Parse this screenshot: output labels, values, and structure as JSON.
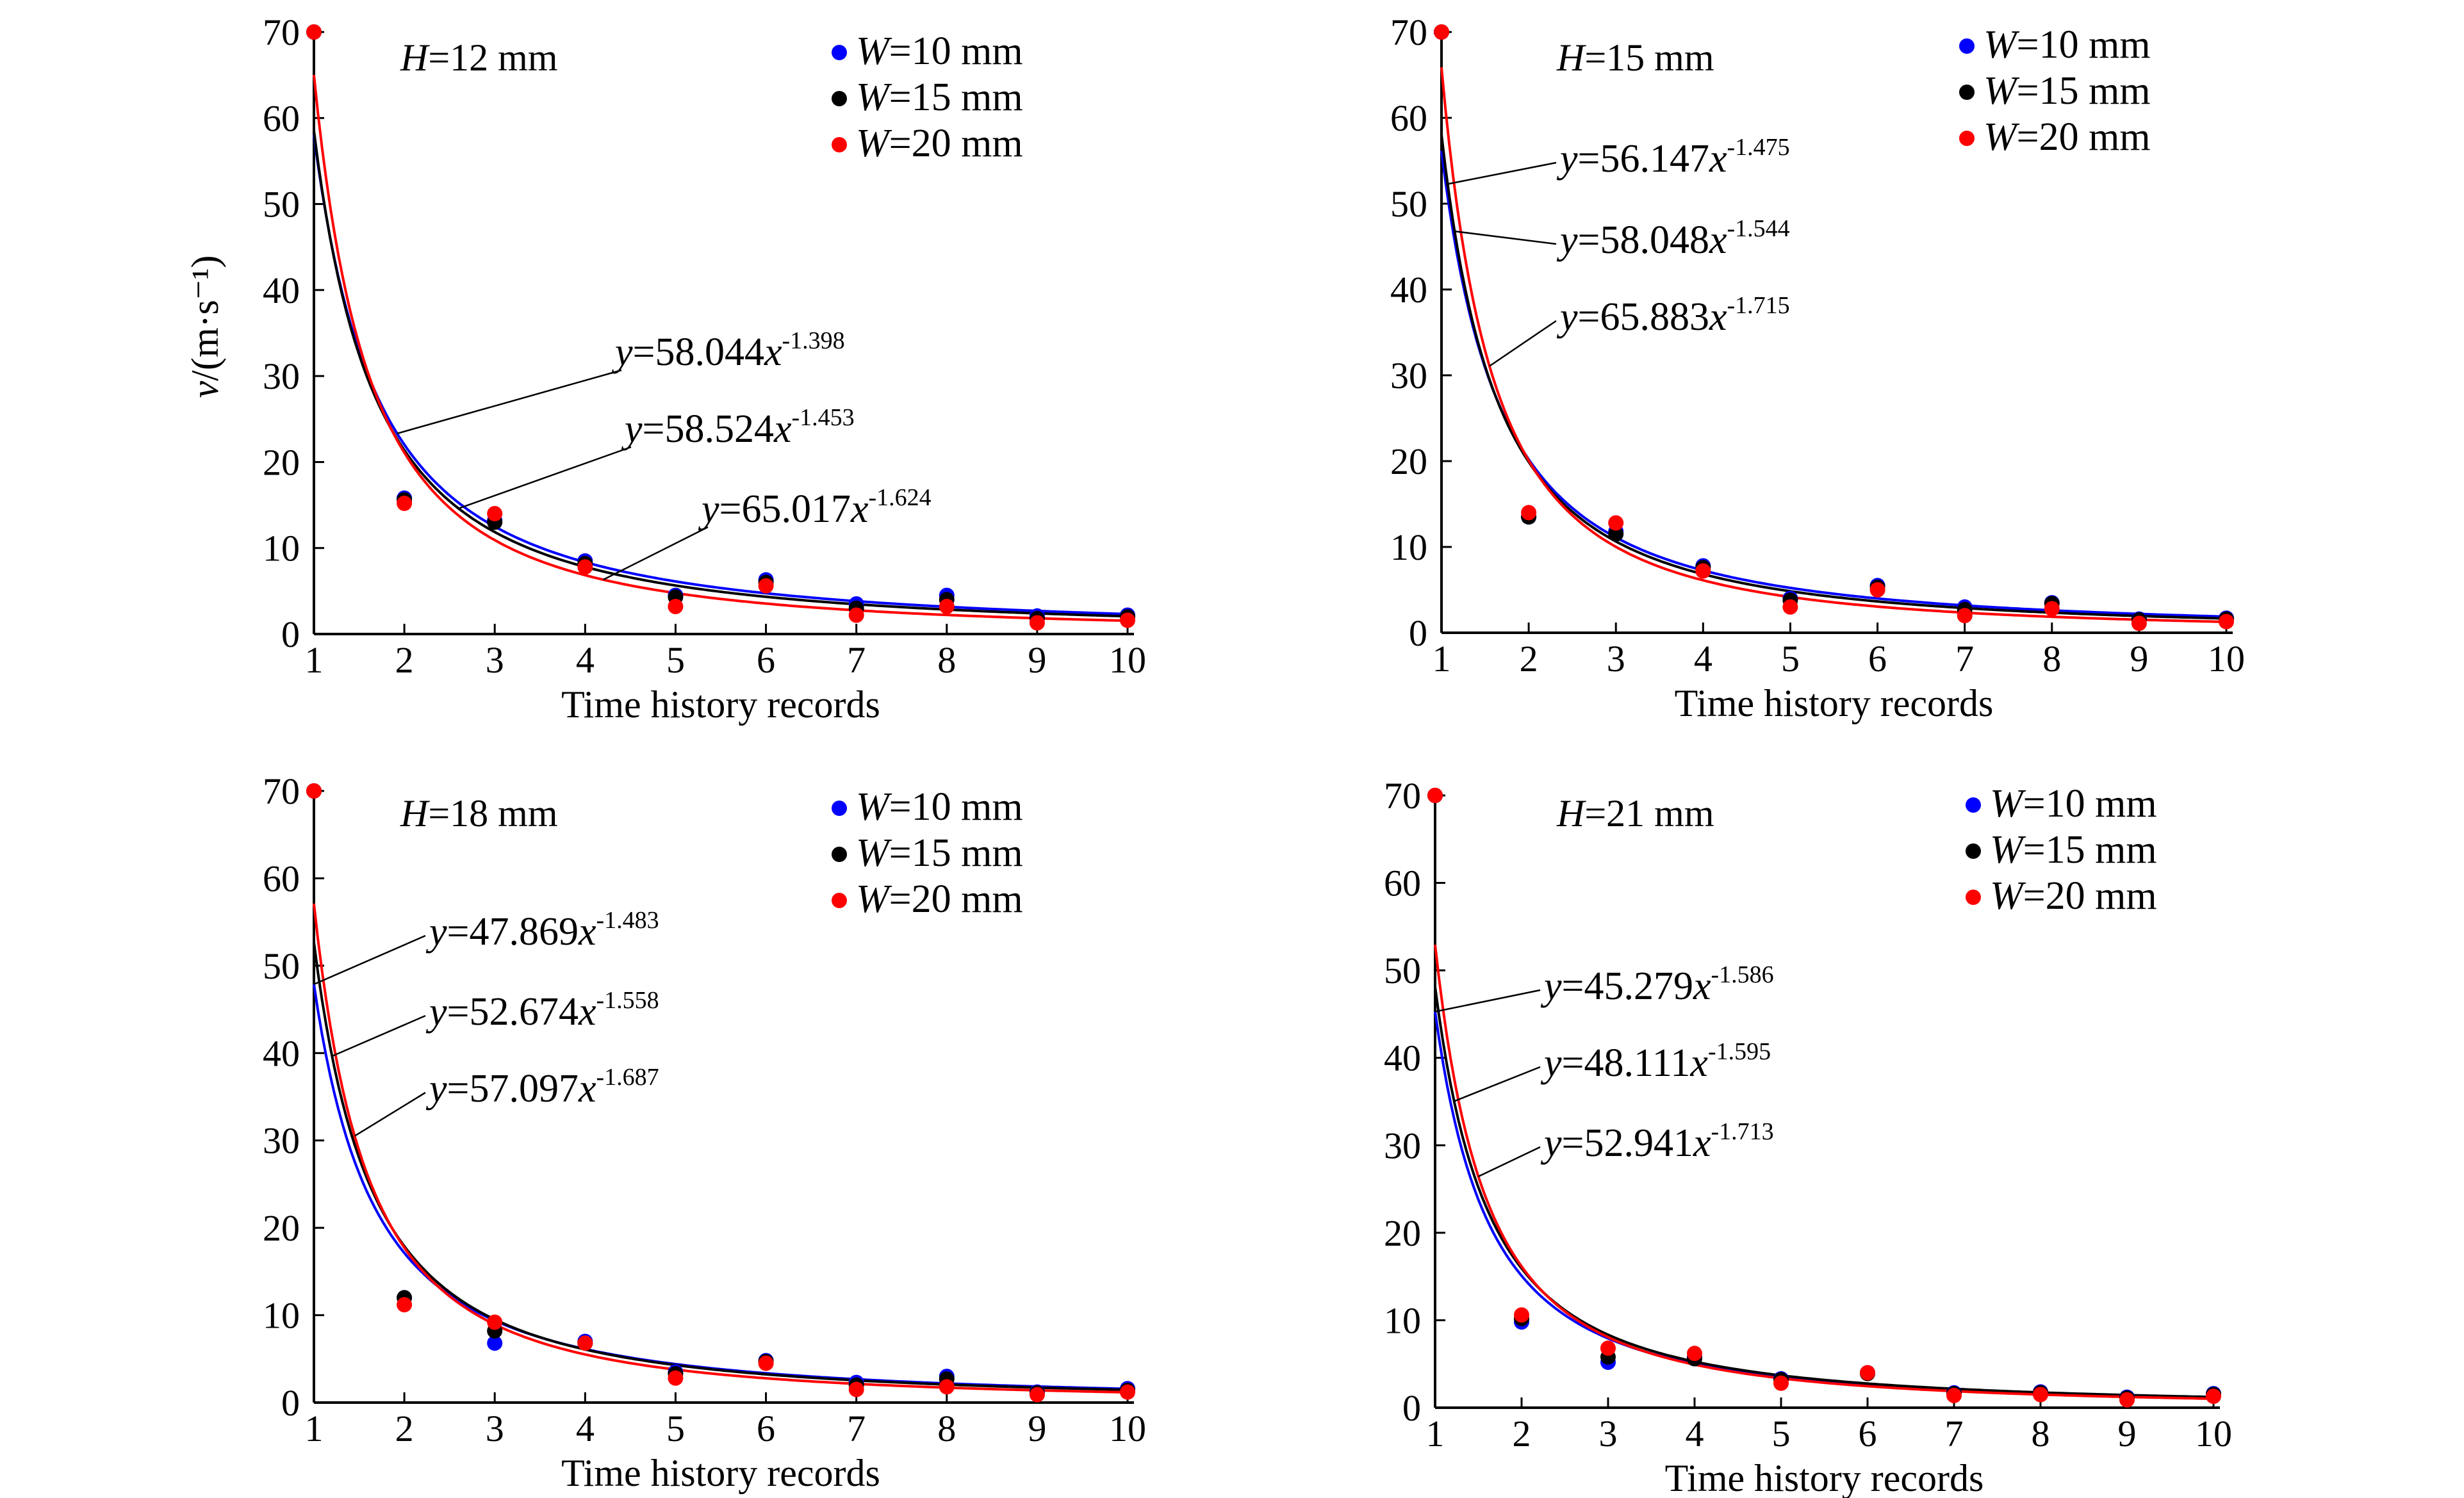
{
  "chart_data": [
    {
      "type": "scatter",
      "title": "H=12 mm",
      "xlabel": "Time history records",
      "ylabel": "v/(m·s⁻¹)",
      "xlim": [
        1,
        10
      ],
      "ylim": [
        0,
        70
      ],
      "xticks": [
        1,
        2,
        3,
        4,
        5,
        6,
        7,
        8,
        9,
        10
      ],
      "yticks": [
        0,
        10,
        20,
        30,
        40,
        50,
        60,
        70
      ],
      "legend_position": "top-right",
      "series": [
        {
          "name": "W=10 mm",
          "color": "#0000ff",
          "x": [
            1,
            2,
            3,
            4,
            5,
            6,
            7,
            8,
            9,
            10
          ],
          "y": [
            70,
            15.8,
            13.2,
            8.5,
            4.5,
            6.3,
            3.5,
            4.5,
            2.1,
            2.2
          ]
        },
        {
          "name": "W=15 mm",
          "color": "#000000",
          "x": [
            1,
            2,
            3,
            4,
            5,
            6,
            7,
            8,
            9,
            10
          ],
          "y": [
            70,
            15.6,
            13.0,
            8.2,
            4.3,
            6.0,
            3.0,
            4.0,
            1.8,
            2.0
          ]
        },
        {
          "name": "W=20 mm",
          "color": "#ff0000",
          "x": [
            1,
            2,
            3,
            4,
            5,
            6,
            7,
            8,
            9,
            10
          ],
          "y": [
            70,
            15.2,
            14.0,
            7.8,
            3.2,
            5.6,
            2.2,
            3.2,
            1.3,
            1.6
          ]
        }
      ],
      "fits": [
        {
          "a": 58.044,
          "b": 1.398,
          "coef": "58.044",
          "exp": "-1.398",
          "color": "#0000ff"
        },
        {
          "a": 58.524,
          "b": 1.453,
          "coef": "58.524",
          "exp": "-1.453",
          "color": "#000000"
        },
        {
          "a": 65.017,
          "b": 1.624,
          "coef": "65.017",
          "exp": "-1.624",
          "color": "#ff0000"
        }
      ]
    },
    {
      "type": "scatter",
      "title": "H=15 mm",
      "xlabel": "Time history records",
      "ylabel": "",
      "xlim": [
        1,
        10
      ],
      "ylim": [
        0,
        70
      ],
      "xticks": [
        1,
        2,
        3,
        4,
        5,
        6,
        7,
        8,
        9,
        10
      ],
      "yticks": [
        0,
        10,
        20,
        30,
        40,
        50,
        60,
        70
      ],
      "legend_position": "top-right",
      "series": [
        {
          "name": "W=10 mm",
          "color": "#0000ff",
          "x": [
            1,
            2,
            3,
            4,
            5,
            6,
            7,
            8,
            9,
            10
          ],
          "y": [
            70,
            13.5,
            11.8,
            7.8,
            4.0,
            5.5,
            3.0,
            3.5,
            1.6,
            1.7
          ]
        },
        {
          "name": "W=15 mm",
          "color": "#000000",
          "x": [
            1,
            2,
            3,
            4,
            5,
            6,
            7,
            8,
            9,
            10
          ],
          "y": [
            70,
            13.5,
            11.5,
            7.6,
            3.8,
            5.3,
            2.7,
            3.4,
            1.5,
            1.6
          ]
        },
        {
          "name": "W=20 mm",
          "color": "#ff0000",
          "x": [
            1,
            2,
            3,
            4,
            5,
            6,
            7,
            8,
            9,
            10
          ],
          "y": [
            70,
            14.0,
            12.8,
            7.2,
            3.0,
            5.0,
            2.0,
            2.8,
            1.1,
            1.3
          ]
        }
      ],
      "fits": [
        {
          "a": 56.147,
          "b": 1.475,
          "coef": "56.147",
          "exp": "-1.475",
          "color": "#0000ff"
        },
        {
          "a": 58.048,
          "b": 1.544,
          "coef": "58.048",
          "exp": "-1.544",
          "color": "#000000"
        },
        {
          "a": 65.883,
          "b": 1.715,
          "coef": "65.883",
          "exp": "-1.715",
          "color": "#ff0000"
        }
      ]
    },
    {
      "type": "scatter",
      "title": "H=18 mm",
      "xlabel": "Time history records",
      "ylabel": "",
      "xlim": [
        1,
        10
      ],
      "ylim": [
        0,
        70
      ],
      "xticks": [
        1,
        2,
        3,
        4,
        5,
        6,
        7,
        8,
        9,
        10
      ],
      "yticks": [
        0,
        10,
        20,
        30,
        40,
        50,
        60,
        70
      ],
      "legend_position": "top-right",
      "series": [
        {
          "name": "W=10 mm",
          "color": "#0000ff",
          "x": [
            1,
            2,
            3,
            4,
            5,
            6,
            7,
            8,
            9,
            10
          ],
          "y": [
            70,
            12.0,
            6.8,
            7.0,
            3.5,
            4.8,
            2.3,
            3.0,
            1.2,
            1.6
          ]
        },
        {
          "name": "W=15 mm",
          "color": "#000000",
          "x": [
            1,
            2,
            3,
            4,
            5,
            6,
            7,
            8,
            9,
            10
          ],
          "y": [
            70,
            12.0,
            8.2,
            6.8,
            3.3,
            4.7,
            2.0,
            2.7,
            1.1,
            1.4
          ]
        },
        {
          "name": "W=20 mm",
          "color": "#ff0000",
          "x": [
            1,
            2,
            3,
            4,
            5,
            6,
            7,
            8,
            9,
            10
          ],
          "y": [
            70,
            11.2,
            9.2,
            6.8,
            2.8,
            4.5,
            1.5,
            1.8,
            0.9,
            1.2
          ]
        }
      ],
      "fits": [
        {
          "a": 47.869,
          "b": 1.483,
          "coef": "47.869",
          "exp": "-1.483",
          "color": "#0000ff"
        },
        {
          "a": 52.674,
          "b": 1.558,
          "coef": "52.674",
          "exp": "-1.558",
          "color": "#000000"
        },
        {
          "a": 57.097,
          "b": 1.687,
          "coef": "57.097",
          "exp": "-1.687",
          "color": "#ff0000"
        }
      ]
    },
    {
      "type": "scatter",
      "title": "H=21 mm",
      "xlabel": "Time history records",
      "ylabel": "",
      "xlim": [
        1,
        10
      ],
      "ylim": [
        0,
        70
      ],
      "xticks": [
        1,
        2,
        3,
        4,
        5,
        6,
        7,
        8,
        9,
        10
      ],
      "yticks": [
        0,
        10,
        20,
        30,
        40,
        50,
        60,
        70
      ],
      "legend_position": "top-right",
      "series": [
        {
          "name": "W=10 mm",
          "color": "#0000ff",
          "x": [
            1,
            2,
            3,
            4,
            5,
            6,
            7,
            8,
            9,
            10
          ],
          "y": [
            70,
            9.8,
            5.2,
            5.8,
            3.3,
            4.0,
            1.7,
            1.8,
            1.2,
            1.6
          ]
        },
        {
          "name": "W=15 mm",
          "color": "#000000",
          "x": [
            1,
            2,
            3,
            4,
            5,
            6,
            7,
            8,
            9,
            10
          ],
          "y": [
            70,
            10.2,
            5.8,
            5.6,
            3.2,
            3.9,
            1.6,
            1.7,
            1.1,
            1.5
          ]
        },
        {
          "name": "W=20 mm",
          "color": "#ff0000",
          "x": [
            1,
            2,
            3,
            4,
            5,
            6,
            7,
            8,
            9,
            10
          ],
          "y": [
            70,
            10.6,
            6.8,
            6.2,
            2.8,
            4.0,
            1.4,
            1.5,
            0.9,
            1.3
          ]
        }
      ],
      "fits": [
        {
          "a": 45.279,
          "b": 1.586,
          "coef": "45.279",
          "exp": "-1.586",
          "color": "#0000ff"
        },
        {
          "a": 48.111,
          "b": 1.595,
          "coef": "48.111",
          "exp": "-1.595",
          "color": "#000000"
        },
        {
          "a": 52.941,
          "b": 1.713,
          "coef": "52.941",
          "exp": "-1.713",
          "color": "#ff0000"
        }
      ]
    }
  ]
}
